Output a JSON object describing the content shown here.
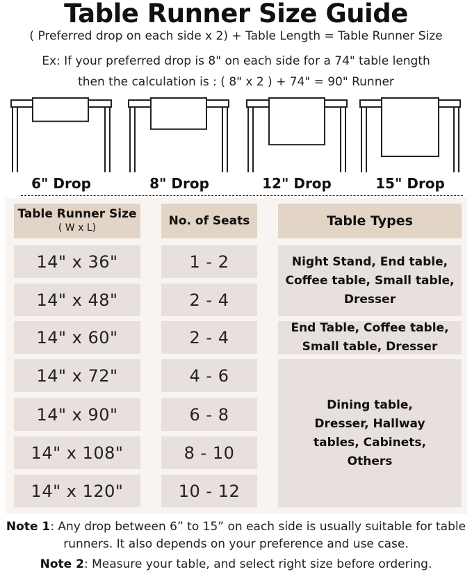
{
  "title": "Table Runner Size Guide",
  "formula": "( Preferred drop on each side x 2) + Table Length = Table Runner Size",
  "example_line1": "Ex: If your preferred drop is 8\" on each side for a 74\" table length",
  "example_line2": "then the calculation is : ( 8\" x 2 ) + 74\" = 90\" Runner",
  "drops": [
    {
      "label": "6\" Drop",
      "inches": 6
    },
    {
      "label": "8\" Drop",
      "inches": 8
    },
    {
      "label": "12\" Drop",
      "inches": 12
    },
    {
      "label": "15\" Drop",
      "inches": 15
    }
  ],
  "table": {
    "headers": {
      "size": "Table Runner Size",
      "size_sub": "( W x L)",
      "seats": "No. of Seats",
      "types": "Table Types"
    },
    "rows": [
      {
        "size": "14\" x 36\"",
        "seats": "1 - 2"
      },
      {
        "size": "14\" x 48\"",
        "seats": "2 - 4"
      },
      {
        "size": "14\" x 60\"",
        "seats": "2 - 4"
      },
      {
        "size": "14\" x 72\"",
        "seats": "4 - 6"
      },
      {
        "size": "14\" x 90\"",
        "seats": "6 - 8"
      },
      {
        "size": "14\" x 108\"",
        "seats": "8 - 10"
      },
      {
        "size": "14\" x 120\"",
        "seats": "10 - 12"
      }
    ],
    "types": [
      "Night Stand, End table, Coffee table, Small table, Dresser",
      "End Table, Coffee table, Small table, Dresser",
      "Dining table, Dresser, Hallway tables, Cabinets, Others"
    ]
  },
  "notes": [
    {
      "label": "Note 1",
      "text": ": Any drop between 6” to 15” on each side is usually suitable for table runners. It also depends on your preference and use case."
    },
    {
      "label": "Note 2",
      "text": ": Measure your table, and select right size before ordering."
    }
  ],
  "colors": {
    "header_cell": "#e2d5c6",
    "body_cell": "#e8e0dc",
    "panel": "#f8f4f1"
  }
}
